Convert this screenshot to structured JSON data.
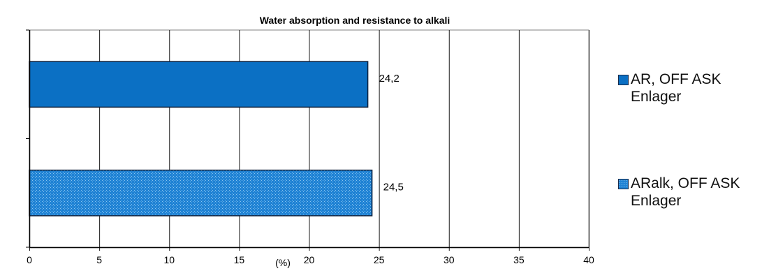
{
  "chart_data": {
    "type": "bar",
    "orientation": "horizontal",
    "title": "Water absorption and resistance to alkali",
    "xlabel": "(%)",
    "ylabel": "",
    "xlim": [
      0,
      40
    ],
    "x_ticks": [
      "0",
      "5",
      "10",
      "15",
      "20",
      "25",
      "30",
      "35",
      "40"
    ],
    "grid": "vertical",
    "legend_position": "right",
    "series": [
      {
        "name": "AR, OFF ASK Enlager",
        "value": 24.2,
        "value_label": "24,2",
        "color": "#0b70c4",
        "pattern": "solid"
      },
      {
        "name": "ARalk, OFF ASK Enlager",
        "value": 24.5,
        "value_label": "24,5",
        "color": "#1f82d4",
        "pattern": "dotted"
      }
    ]
  },
  "legend": {
    "items": [
      {
        "label": "AR, OFF ASK\nEnlager"
      },
      {
        "label": "ARalk, OFF ASK\nEnlager"
      }
    ]
  }
}
